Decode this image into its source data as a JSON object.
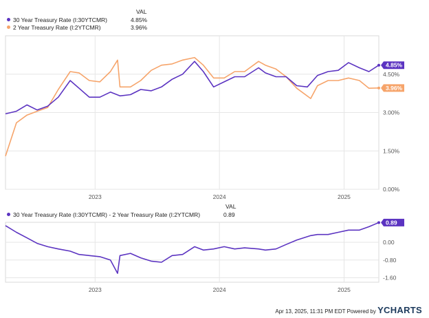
{
  "legend_top": {
    "val_header": "VAL",
    "items": [
      {
        "label": "30 Year Treasury Rate (I:30YTCMR)",
        "value": "4.85%",
        "color": "#5b33c1"
      },
      {
        "label": "2 Year Treasury Rate (I:2YTCMR)",
        "value": "3.96%",
        "color": "#f6a46a"
      }
    ]
  },
  "legend_bottom": {
    "val_header": "VAL",
    "items": [
      {
        "label": "30 Year Treasury Rate (I:30YTCMR) - 2 Year Treasury Rate (I:2YTCMR)",
        "value": "0.89",
        "color": "#5b33c1"
      }
    ]
  },
  "footer": {
    "timestamp": "Apr 13, 2025, 11:31 PM EDT Powered by",
    "brand": "YCHARTS"
  },
  "chart_data": [
    {
      "type": "line",
      "x_ticks": [
        "2023",
        "2024",
        "2025"
      ],
      "y_ticks": [
        "0.00%",
        "1.50%",
        "3.00%",
        "4.50%"
      ],
      "ylim": [
        0,
        6
      ],
      "grid": true,
      "badges": [
        "4.85%",
        "3.96%"
      ],
      "series": [
        {
          "name": "30 Year Treasury Rate (I:30YTCMR)",
          "color": "#5b33c1",
          "x": [
            "2022-04-13",
            "2022-05-15",
            "2022-06-15",
            "2022-07-15",
            "2022-08-15",
            "2022-09-15",
            "2022-10-20",
            "2022-11-15",
            "2022-12-15",
            "2023-01-15",
            "2023-02-15",
            "2023-03-15",
            "2023-04-15",
            "2023-05-15",
            "2023-06-15",
            "2023-07-15",
            "2023-08-15",
            "2023-09-15",
            "2023-10-20",
            "2023-11-15",
            "2023-12-15",
            "2024-01-15",
            "2024-02-15",
            "2024-03-15",
            "2024-04-25",
            "2024-05-15",
            "2024-06-15",
            "2024-07-15",
            "2024-08-15",
            "2024-09-15",
            "2024-10-15",
            "2024-11-15",
            "2024-12-15",
            "2025-01-14",
            "2025-02-15",
            "2025-03-15",
            "2025-04-13"
          ],
          "values": [
            2.95,
            3.05,
            3.3,
            3.1,
            3.25,
            3.6,
            4.25,
            3.95,
            3.6,
            3.6,
            3.8,
            3.65,
            3.7,
            3.9,
            3.85,
            4.0,
            4.3,
            4.5,
            5.0,
            4.6,
            4.0,
            4.2,
            4.4,
            4.4,
            4.75,
            4.55,
            4.4,
            4.4,
            4.05,
            4.0,
            4.45,
            4.6,
            4.65,
            4.95,
            4.75,
            4.6,
            4.85
          ]
        },
        {
          "name": "2 Year Treasury Rate (I:2YTCMR)",
          "color": "#f6a46a",
          "x": [
            "2022-04-13",
            "2022-05-15",
            "2022-06-15",
            "2022-07-15",
            "2022-08-15",
            "2022-09-15",
            "2022-10-20",
            "2022-11-15",
            "2022-12-15",
            "2023-01-15",
            "2023-02-15",
            "2023-03-08",
            "2023-03-15",
            "2023-04-15",
            "2023-05-15",
            "2023-06-15",
            "2023-07-15",
            "2023-08-15",
            "2023-09-15",
            "2023-10-20",
            "2023-11-15",
            "2023-12-15",
            "2024-01-15",
            "2024-02-15",
            "2024-03-15",
            "2024-04-25",
            "2024-05-15",
            "2024-06-15",
            "2024-07-15",
            "2024-08-15",
            "2024-09-25",
            "2024-10-15",
            "2024-11-15",
            "2024-12-15",
            "2025-01-14",
            "2025-02-15",
            "2025-03-15",
            "2025-04-13"
          ],
          "values": [
            1.3,
            2.6,
            2.9,
            3.05,
            3.2,
            3.9,
            4.6,
            4.55,
            4.25,
            4.2,
            4.6,
            5.05,
            4.0,
            4.0,
            4.25,
            4.65,
            4.85,
            4.9,
            5.05,
            5.15,
            4.85,
            4.35,
            4.35,
            4.6,
            4.6,
            5.0,
            4.85,
            4.7,
            4.4,
            3.95,
            3.55,
            4.05,
            4.25,
            4.25,
            4.35,
            4.25,
            3.95,
            3.96
          ]
        }
      ]
    },
    {
      "type": "line",
      "x_ticks": [
        "2023",
        "2024",
        "2025"
      ],
      "y_ticks": [
        "0.00",
        "-0.80",
        "-1.60"
      ],
      "ylim": [
        -1.8,
        0.9
      ],
      "grid": true,
      "badges": [
        "0.89"
      ],
      "series": [
        {
          "name": "30 Year Treasury Rate (I:30YTCMR) - 2 Year Treasury Rate (I:2YTCMR)",
          "color": "#5b33c1",
          "x": [
            "2022-04-13",
            "2022-05-15",
            "2022-06-15",
            "2022-07-15",
            "2022-08-15",
            "2022-09-15",
            "2022-10-20",
            "2022-11-15",
            "2022-12-15",
            "2023-01-15",
            "2023-02-15",
            "2023-03-08",
            "2023-03-15",
            "2023-04-15",
            "2023-05-15",
            "2023-06-15",
            "2023-07-15",
            "2023-08-15",
            "2023-09-15",
            "2023-10-20",
            "2023-11-15",
            "2023-12-15",
            "2024-01-15",
            "2024-02-15",
            "2024-03-15",
            "2024-04-25",
            "2024-05-15",
            "2024-06-15",
            "2024-07-15",
            "2024-08-15",
            "2024-09-25",
            "2024-10-15",
            "2024-11-15",
            "2024-12-15",
            "2025-01-14",
            "2025-02-15",
            "2025-03-15",
            "2025-04-13"
          ],
          "values": [
            0.75,
            0.45,
            0.2,
            -0.05,
            -0.2,
            -0.3,
            -0.4,
            -0.55,
            -0.6,
            -0.65,
            -0.8,
            -1.4,
            -0.6,
            -0.5,
            -0.7,
            -0.85,
            -0.9,
            -0.6,
            -0.55,
            -0.2,
            -0.35,
            -0.3,
            -0.2,
            -0.3,
            -0.25,
            -0.3,
            -0.35,
            -0.3,
            -0.1,
            0.1,
            0.3,
            0.35,
            0.35,
            0.45,
            0.55,
            0.55,
            0.7,
            0.89
          ]
        }
      ]
    }
  ]
}
